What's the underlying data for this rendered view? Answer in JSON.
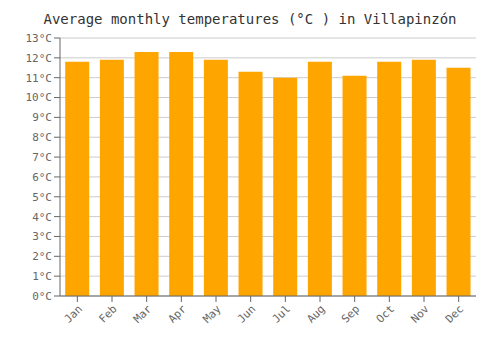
{
  "chart_data": {
    "type": "bar",
    "title": "Average monthly temperatures (°C ) in Villapinzón",
    "categories": [
      "Jan",
      "Feb",
      "Mar",
      "Apr",
      "May",
      "Jun",
      "Jul",
      "Aug",
      "Sep",
      "Oct",
      "Nov",
      "Dec"
    ],
    "values": [
      11.8,
      11.9,
      12.3,
      12.3,
      11.9,
      11.3,
      11.0,
      11.8,
      11.1,
      11.8,
      11.9,
      11.5
    ],
    "color": "#FFA500",
    "ylim": [
      0,
      13
    ],
    "yticks": [
      {
        "value": 0,
        "label": "0°C"
      },
      {
        "value": 1,
        "label": "1°C"
      },
      {
        "value": 2,
        "label": "2°C"
      },
      {
        "value": 3,
        "label": "3°C"
      },
      {
        "value": 4,
        "label": "4°C"
      },
      {
        "value": 5,
        "label": "5°C"
      },
      {
        "value": 6,
        "label": "6°C"
      },
      {
        "value": 7,
        "label": "7°C"
      },
      {
        "value": 8,
        "label": "8°C"
      },
      {
        "value": 9,
        "label": "9°C"
      },
      {
        "value": 10,
        "label": "10°C"
      },
      {
        "value": 11,
        "label": "11°C"
      },
      {
        "value": 12,
        "label": "12°C"
      },
      {
        "value": 13,
        "label": "13°C"
      }
    ],
    "grid": true
  }
}
